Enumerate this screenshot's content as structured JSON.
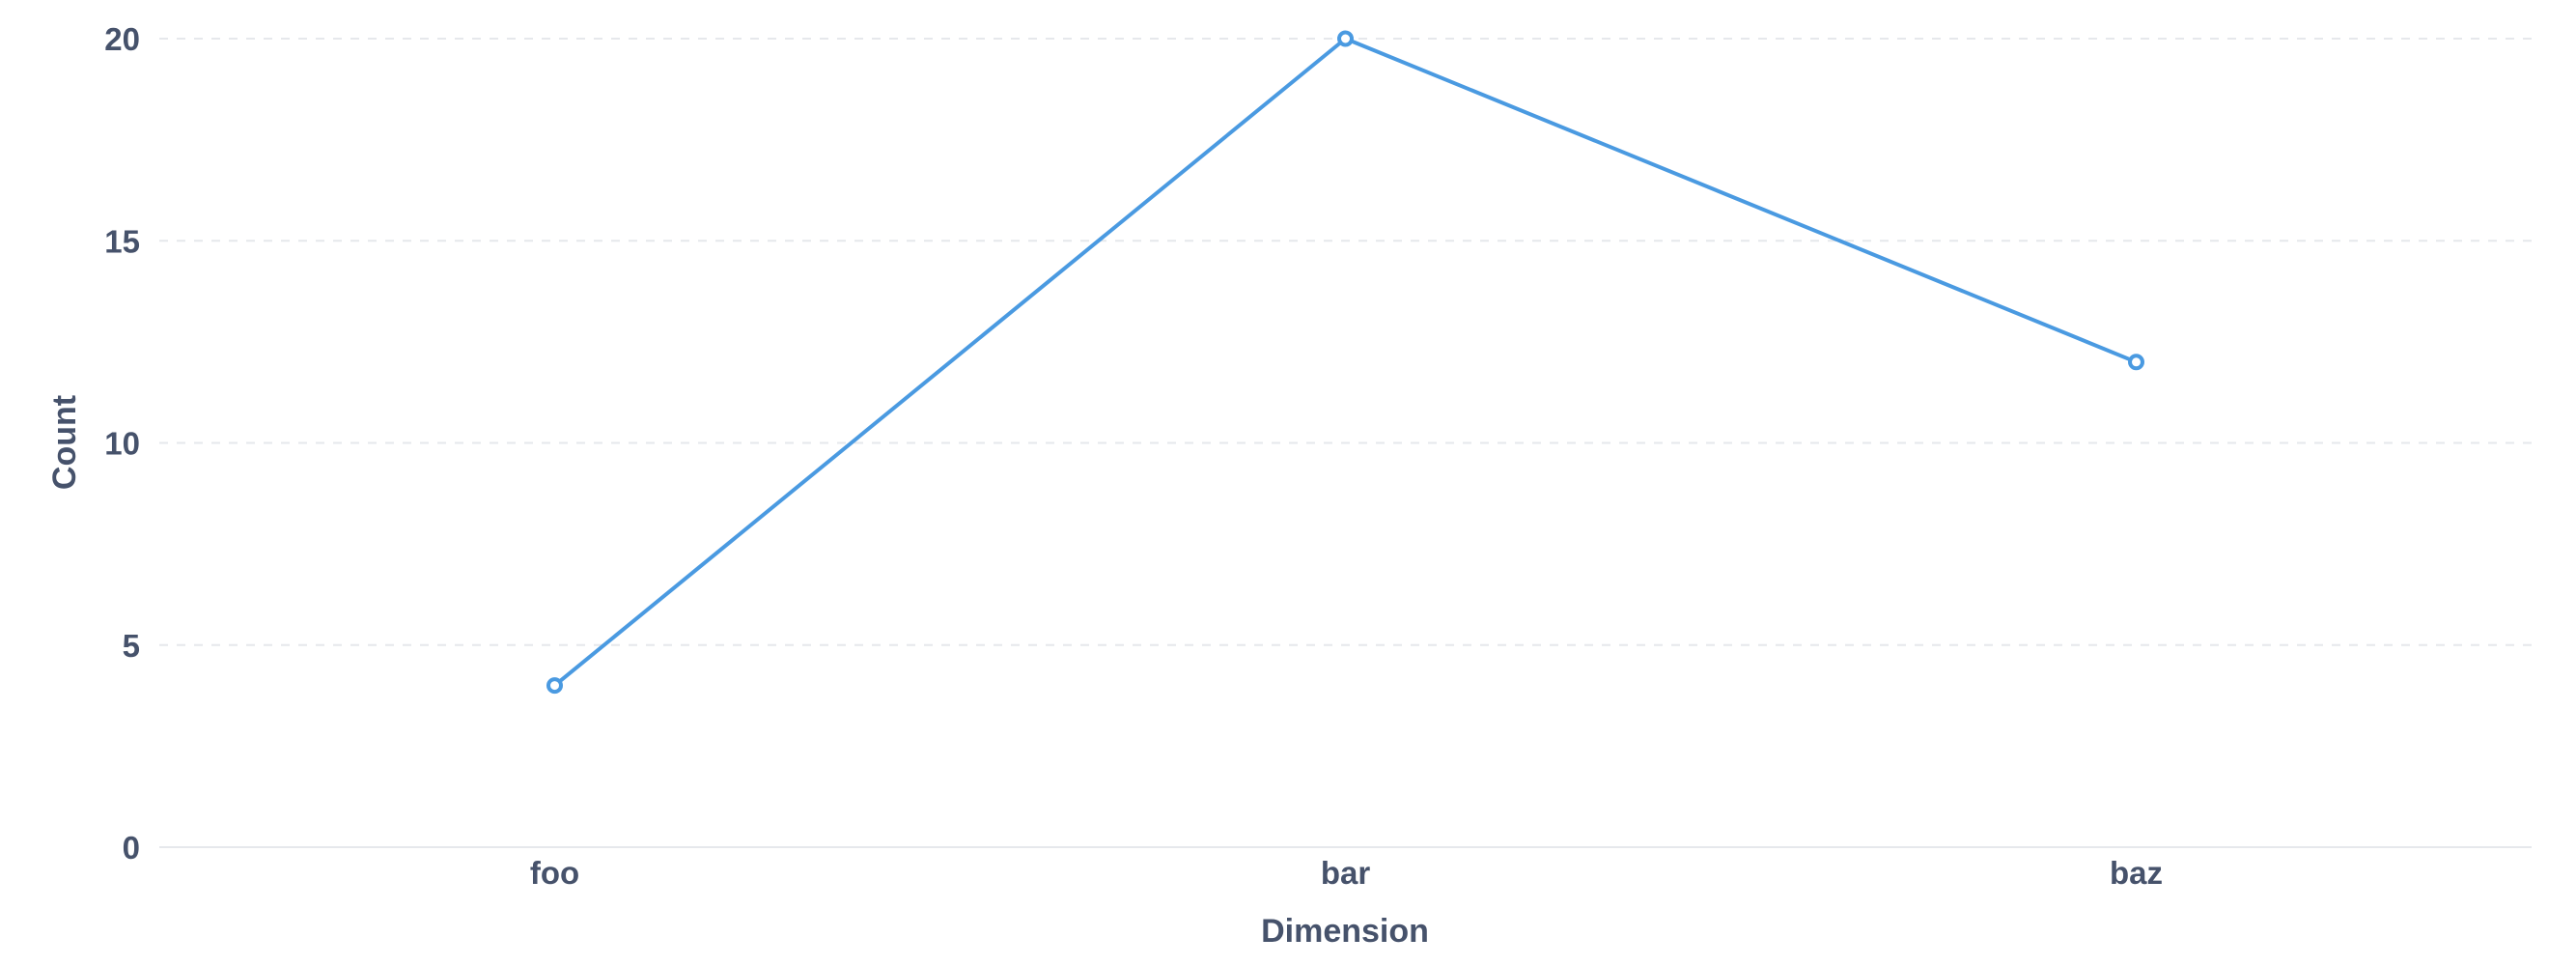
{
  "chart_data": {
    "type": "line",
    "categories": [
      "foo",
      "bar",
      "baz"
    ],
    "series": [
      {
        "values": [
          4,
          20,
          12
        ],
        "color": "#4a9ae1"
      }
    ],
    "xlabel": "Dimension",
    "ylabel": "Count",
    "ylim": [
      0,
      20
    ],
    "yticks": [
      0,
      5,
      10,
      15,
      20
    ],
    "grid": true,
    "legend": "none"
  }
}
